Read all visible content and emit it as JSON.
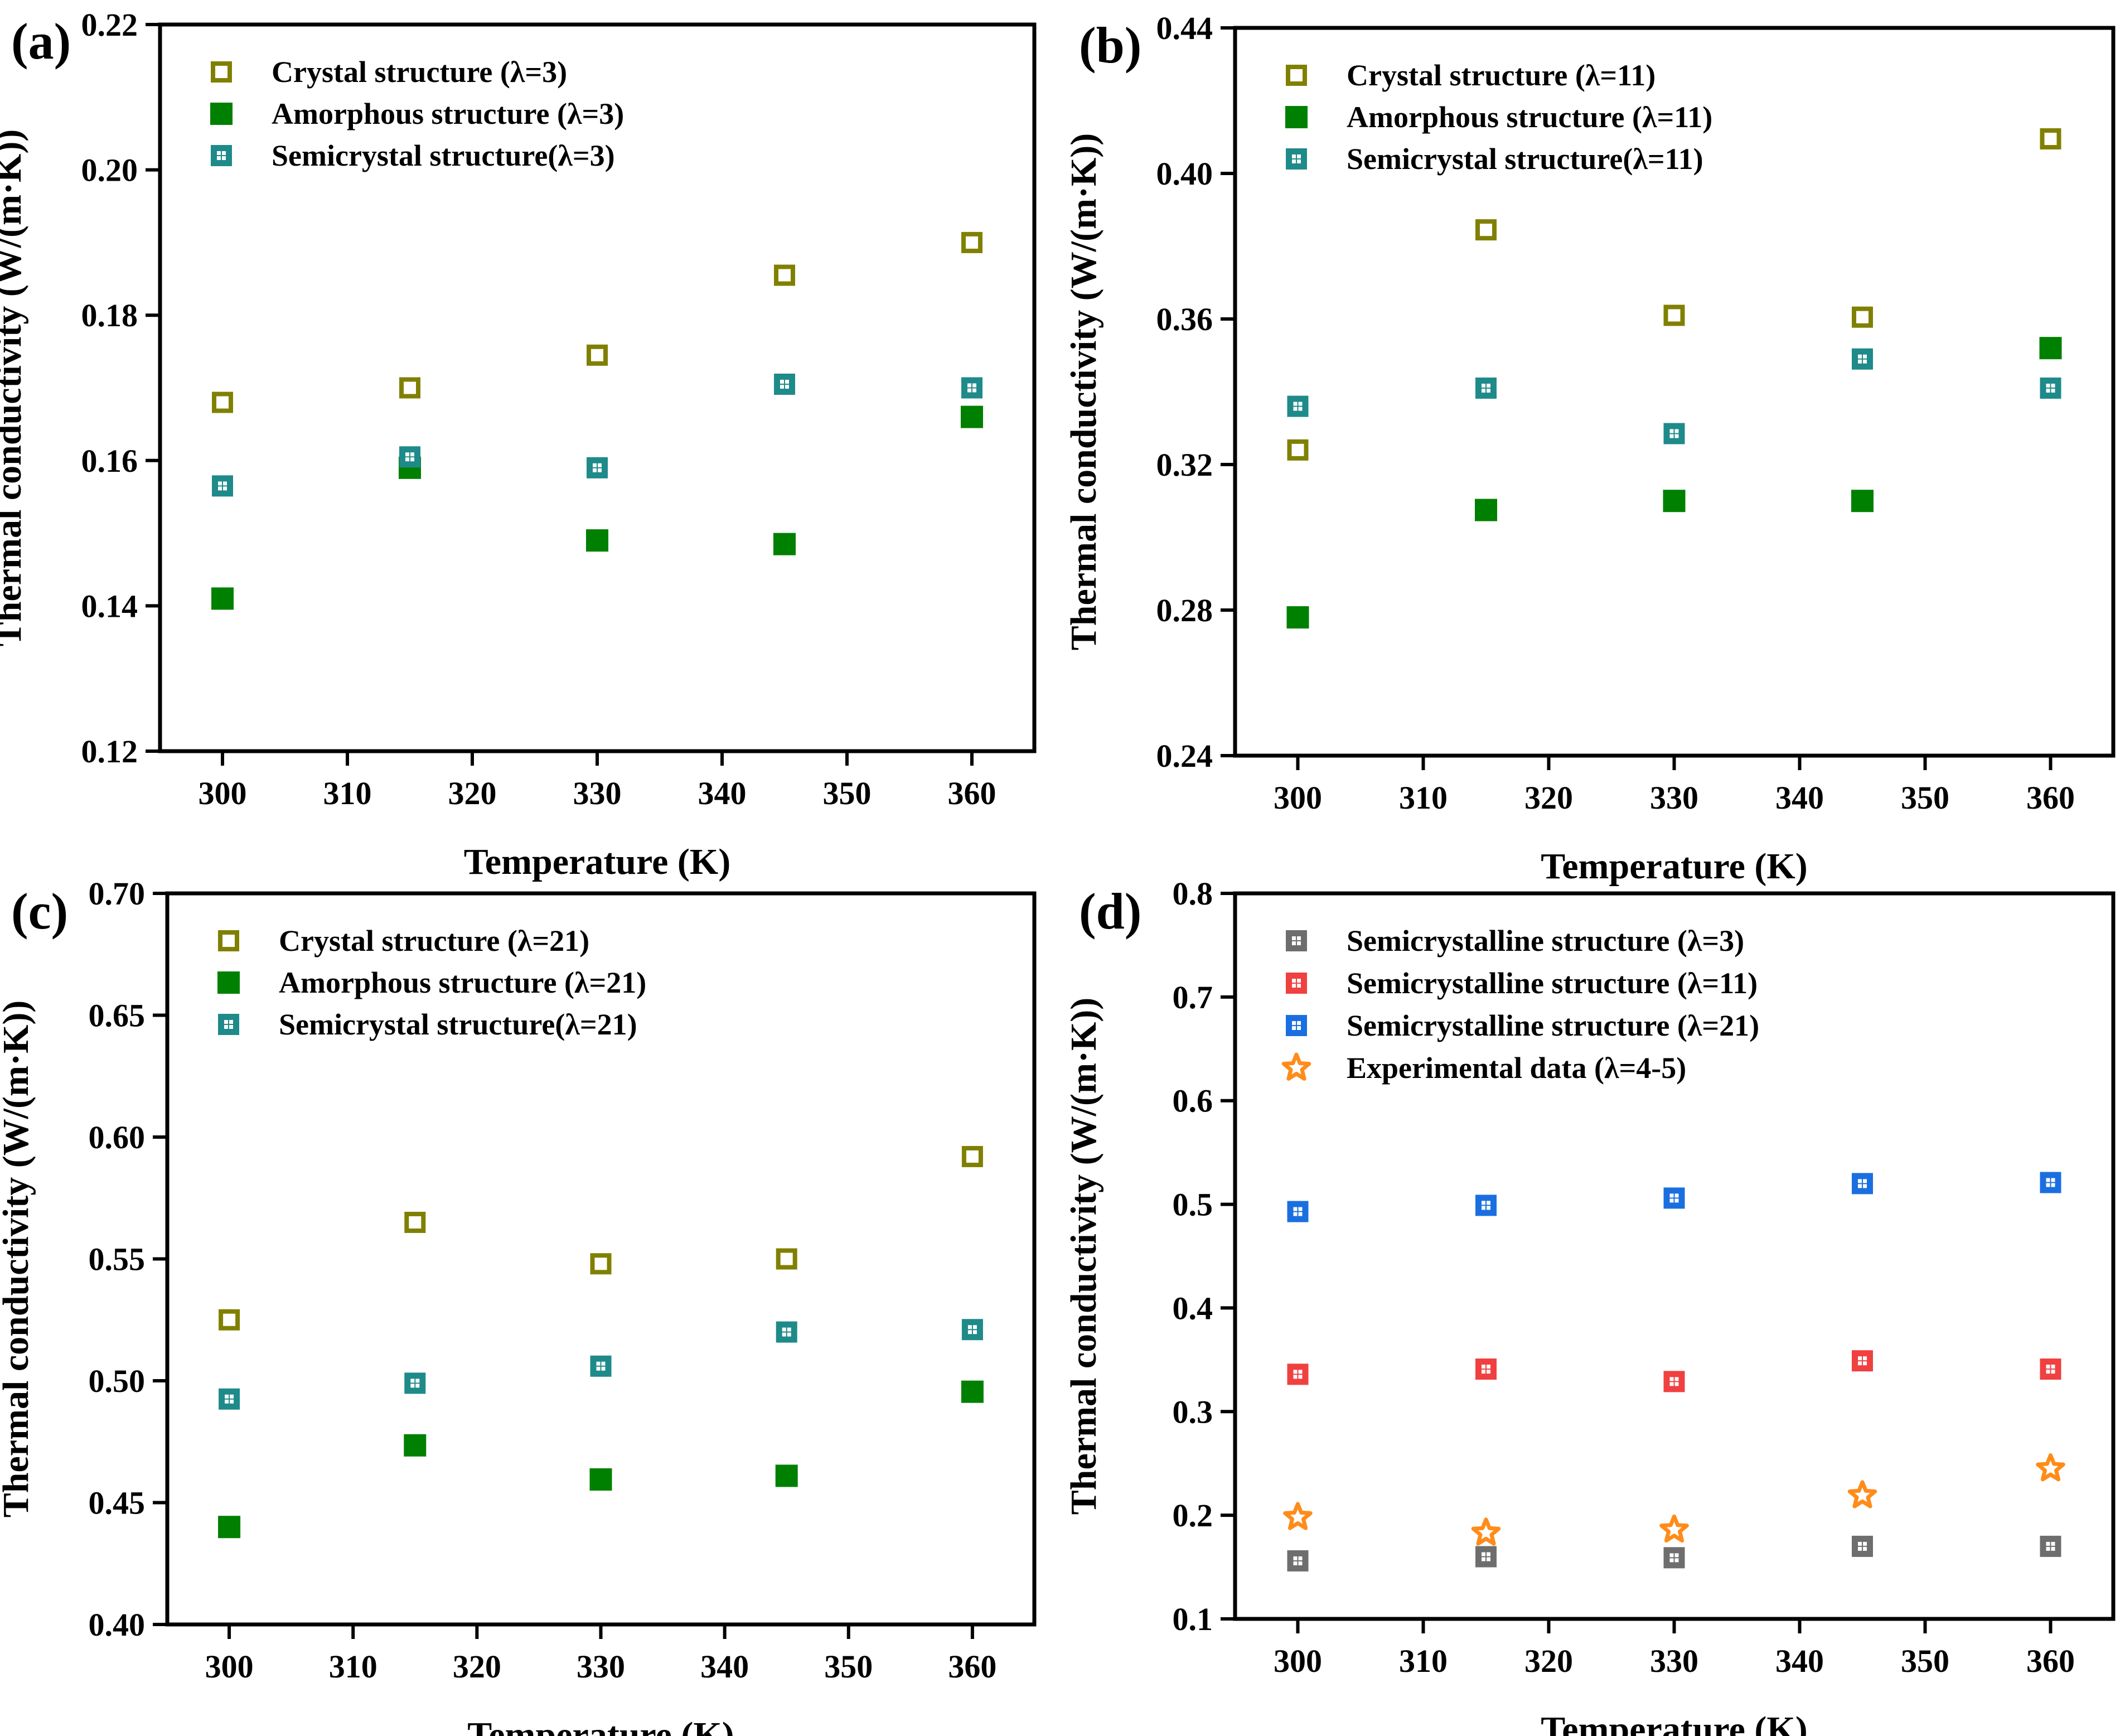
{
  "chart_data": [
    {
      "panel": "(a)",
      "type": "scatter",
      "xlabel": "Temperature (K)",
      "ylabel": "Thermal conductivity (W/(m·K))",
      "xlim": [
        295,
        365
      ],
      "ylim": [
        0.12,
        0.22
      ],
      "xticks": [
        "300",
        "310",
        "320",
        "330",
        "340",
        "350",
        "360"
      ],
      "yticks": [
        "0.12",
        "0.14",
        "0.16",
        "0.18",
        "0.20",
        "0.22"
      ],
      "legend": "top-left",
      "series": [
        {
          "name": "Crystal structure (λ=3)",
          "marker": "open-square",
          "color": "#808000",
          "x": [
            300,
            315,
            330,
            345,
            360
          ],
          "y": [
            0.168,
            0.17,
            0.1745,
            0.1855,
            0.19
          ]
        },
        {
          "name": "Amorphous structure (λ=3)",
          "marker": "filled-square",
          "color": "#008000",
          "x": [
            300,
            315,
            330,
            345,
            360
          ],
          "y": [
            0.141,
            0.159,
            0.149,
            0.1485,
            0.166
          ]
        },
        {
          "name": "Semicrystal structure(λ=3)",
          "marker": "dotted-square",
          "color": "#1E8A8A",
          "x": [
            300,
            315,
            330,
            345,
            360
          ],
          "y": [
            0.1565,
            0.1605,
            0.159,
            0.1705,
            0.17
          ]
        }
      ]
    },
    {
      "panel": "(b)",
      "type": "scatter",
      "xlabel": "Temperature (K)",
      "ylabel": "Thermal conductivity (W/(m·K))",
      "xlim": [
        295,
        365
      ],
      "ylim": [
        0.24,
        0.44
      ],
      "xticks": [
        "300",
        "310",
        "320",
        "330",
        "340",
        "350",
        "360"
      ],
      "yticks": [
        "0.24",
        "0.28",
        "0.32",
        "0.36",
        "0.40",
        "0.44"
      ],
      "legend": "top-left",
      "series": [
        {
          "name": "Crystal structure (λ=11)",
          "marker": "open-square",
          "color": "#808000",
          "x": [
            300,
            315,
            330,
            345,
            360
          ],
          "y": [
            0.324,
            0.3845,
            0.361,
            0.3605,
            0.4095
          ]
        },
        {
          "name": "Amorphous structure (λ=11)",
          "marker": "filled-square",
          "color": "#008000",
          "x": [
            300,
            315,
            330,
            345,
            360
          ],
          "y": [
            0.278,
            0.3075,
            0.31,
            0.31,
            0.352
          ]
        },
        {
          "name": "Semicrystal structure(λ=11)",
          "marker": "dotted-square",
          "color": "#1E8A8A",
          "x": [
            300,
            315,
            330,
            345,
            360
          ],
          "y": [
            0.336,
            0.341,
            0.3285,
            0.349,
            0.341
          ]
        }
      ]
    },
    {
      "panel": "(c)",
      "type": "scatter",
      "xlabel": "Temperature (K)",
      "ylabel": "Thermal conductivity (W/(m·K))",
      "xlim": [
        295,
        365
      ],
      "ylim": [
        0.4,
        0.7
      ],
      "xticks": [
        "300",
        "310",
        "320",
        "330",
        "340",
        "350",
        "360"
      ],
      "yticks": [
        "0.40",
        "0.45",
        "0.50",
        "0.55",
        "0.60",
        "0.65",
        "0.70"
      ],
      "legend": "top-left",
      "series": [
        {
          "name": "Crystal structure (λ=21)",
          "marker": "open-square",
          "color": "#808000",
          "x": [
            300,
            315,
            330,
            345,
            360
          ],
          "y": [
            0.525,
            0.565,
            0.548,
            0.55,
            0.592
          ]
        },
        {
          "name": "Amorphous structure (λ=21)",
          "marker": "filled-square",
          "color": "#008000",
          "x": [
            300,
            315,
            330,
            345,
            360
          ],
          "y": [
            0.44,
            0.4735,
            0.4595,
            0.461,
            0.4955
          ]
        },
        {
          "name": "Semicrystal structure(λ=21)",
          "marker": "dotted-square",
          "color": "#1E8A8A",
          "x": [
            300,
            315,
            330,
            345,
            360
          ],
          "y": [
            0.4925,
            0.499,
            0.506,
            0.52,
            0.521
          ]
        }
      ]
    },
    {
      "panel": "(d)",
      "type": "scatter",
      "xlabel": "Temperature (K)",
      "ylabel": "Thermal conductivity (W/(m·K))",
      "xlim": [
        295,
        365
      ],
      "ylim": [
        0.1,
        0.8
      ],
      "xticks": [
        "300",
        "310",
        "320",
        "330",
        "340",
        "350",
        "360"
      ],
      "yticks": [
        "0.1",
        "0.2",
        "0.3",
        "0.4",
        "0.5",
        "0.6",
        "0.7",
        "0.8"
      ],
      "legend": "top-left",
      "series": [
        {
          "name": "Semicrystalline structure (λ=3)",
          "marker": "dotted-square",
          "color": "#6E6E6E",
          "x": [
            300,
            315,
            330,
            345,
            360
          ],
          "y": [
            0.156,
            0.16,
            0.159,
            0.17,
            0.17
          ]
        },
        {
          "name": "Semicrystalline structure (λ=11)",
          "marker": "dotted-square",
          "color": "#F04040",
          "x": [
            300,
            315,
            330,
            345,
            360
          ],
          "y": [
            0.336,
            0.341,
            0.329,
            0.349,
            0.341
          ]
        },
        {
          "name": "Semicrystalline structure (λ=21)",
          "marker": "dotted-square",
          "color": "#1A6FE0",
          "x": [
            300,
            315,
            330,
            345,
            360
          ],
          "y": [
            0.493,
            0.499,
            0.506,
            0.52,
            0.521
          ]
        },
        {
          "name": "Experimental data (λ=4-5)",
          "marker": "star",
          "color": "#FF8C1A",
          "x": [
            300,
            315,
            330,
            345,
            360
          ],
          "y": [
            0.198,
            0.183,
            0.186,
            0.219,
            0.245
          ]
        }
      ]
    }
  ]
}
